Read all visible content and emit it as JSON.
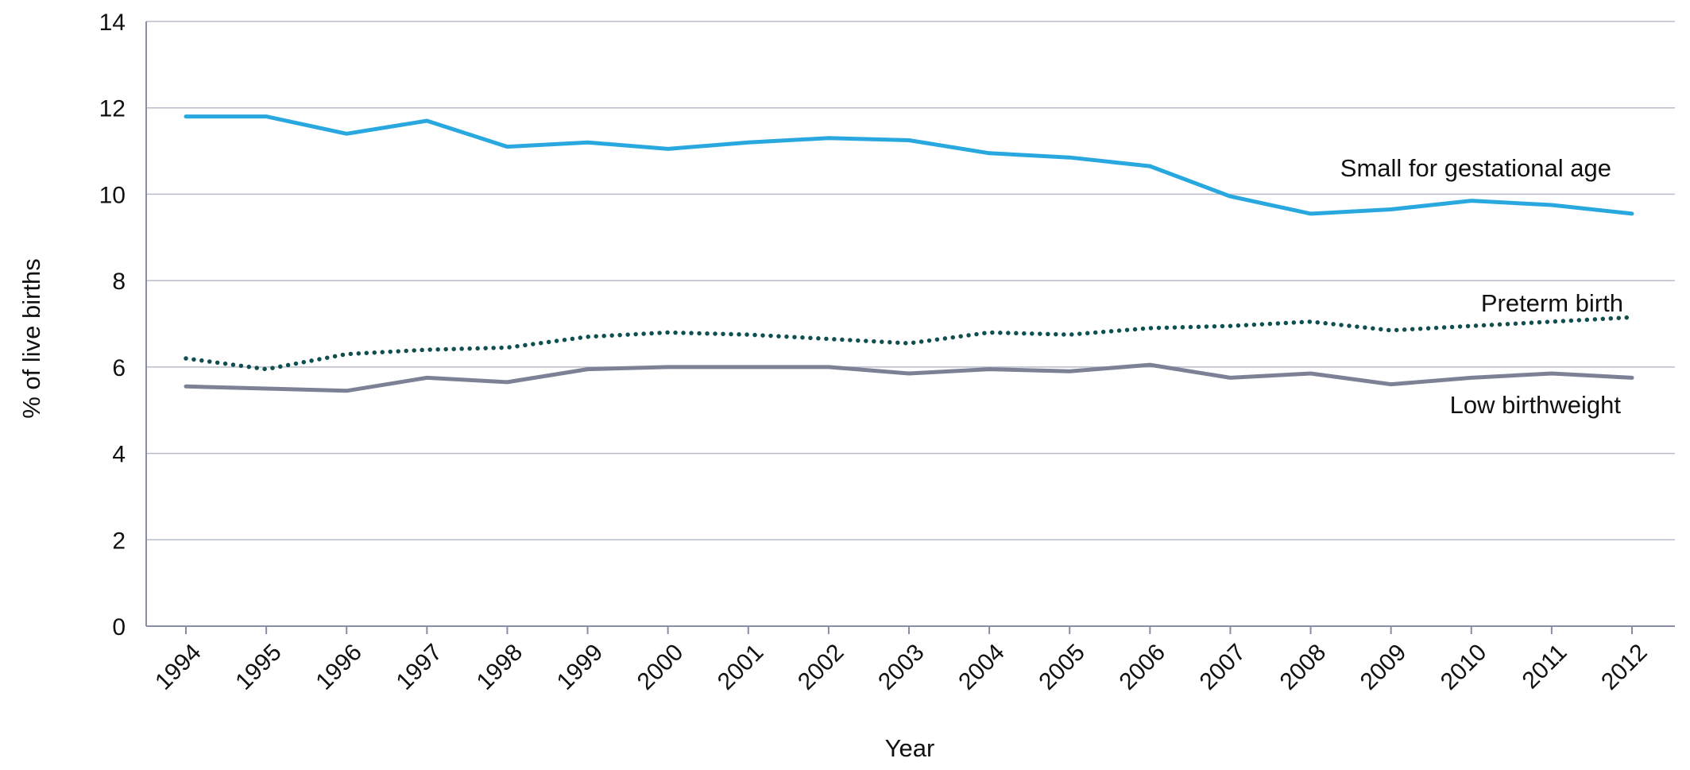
{
  "chart_data": {
    "type": "line",
    "title": "",
    "xlabel": "Year",
    "ylabel": "% of live births",
    "categories": [
      "1994",
      "1995",
      "1996",
      "1997",
      "1998",
      "1999",
      "2000",
      "2001",
      "2002",
      "2003",
      "2004",
      "2005",
      "2006",
      "2007",
      "2008",
      "2009",
      "2010",
      "2011",
      "2012"
    ],
    "ylim": [
      0,
      14
    ],
    "yticks": [
      "0",
      "2",
      "4",
      "6",
      "8",
      "10",
      "12",
      "14"
    ],
    "grid": true,
    "series": [
      {
        "name": "Small for gestational age",
        "color": "#29a8e0",
        "style": "solid",
        "values": [
          11.8,
          11.8,
          11.4,
          11.7,
          11.1,
          11.2,
          11.05,
          11.2,
          11.3,
          11.25,
          10.95,
          10.85,
          10.65,
          9.95,
          9.55,
          9.65,
          9.85,
          9.75,
          9.55
        ]
      },
      {
        "name": "Preterm birth",
        "color": "#0f4f4f",
        "style": "dotted",
        "values": [
          6.2,
          5.95,
          6.3,
          6.4,
          6.45,
          6.7,
          6.8,
          6.75,
          6.65,
          6.55,
          6.8,
          6.75,
          6.9,
          6.95,
          7.05,
          6.85,
          6.95,
          7.05,
          7.15
        ]
      },
      {
        "name": "Low birthweight",
        "color": "#7d8195",
        "style": "solid",
        "values": [
          5.55,
          5.5,
          5.45,
          5.75,
          5.65,
          5.95,
          6.0,
          6.0,
          6.0,
          5.85,
          5.95,
          5.9,
          6.05,
          5.75,
          5.85,
          5.6,
          5.75,
          5.85,
          5.75
        ]
      }
    ]
  }
}
